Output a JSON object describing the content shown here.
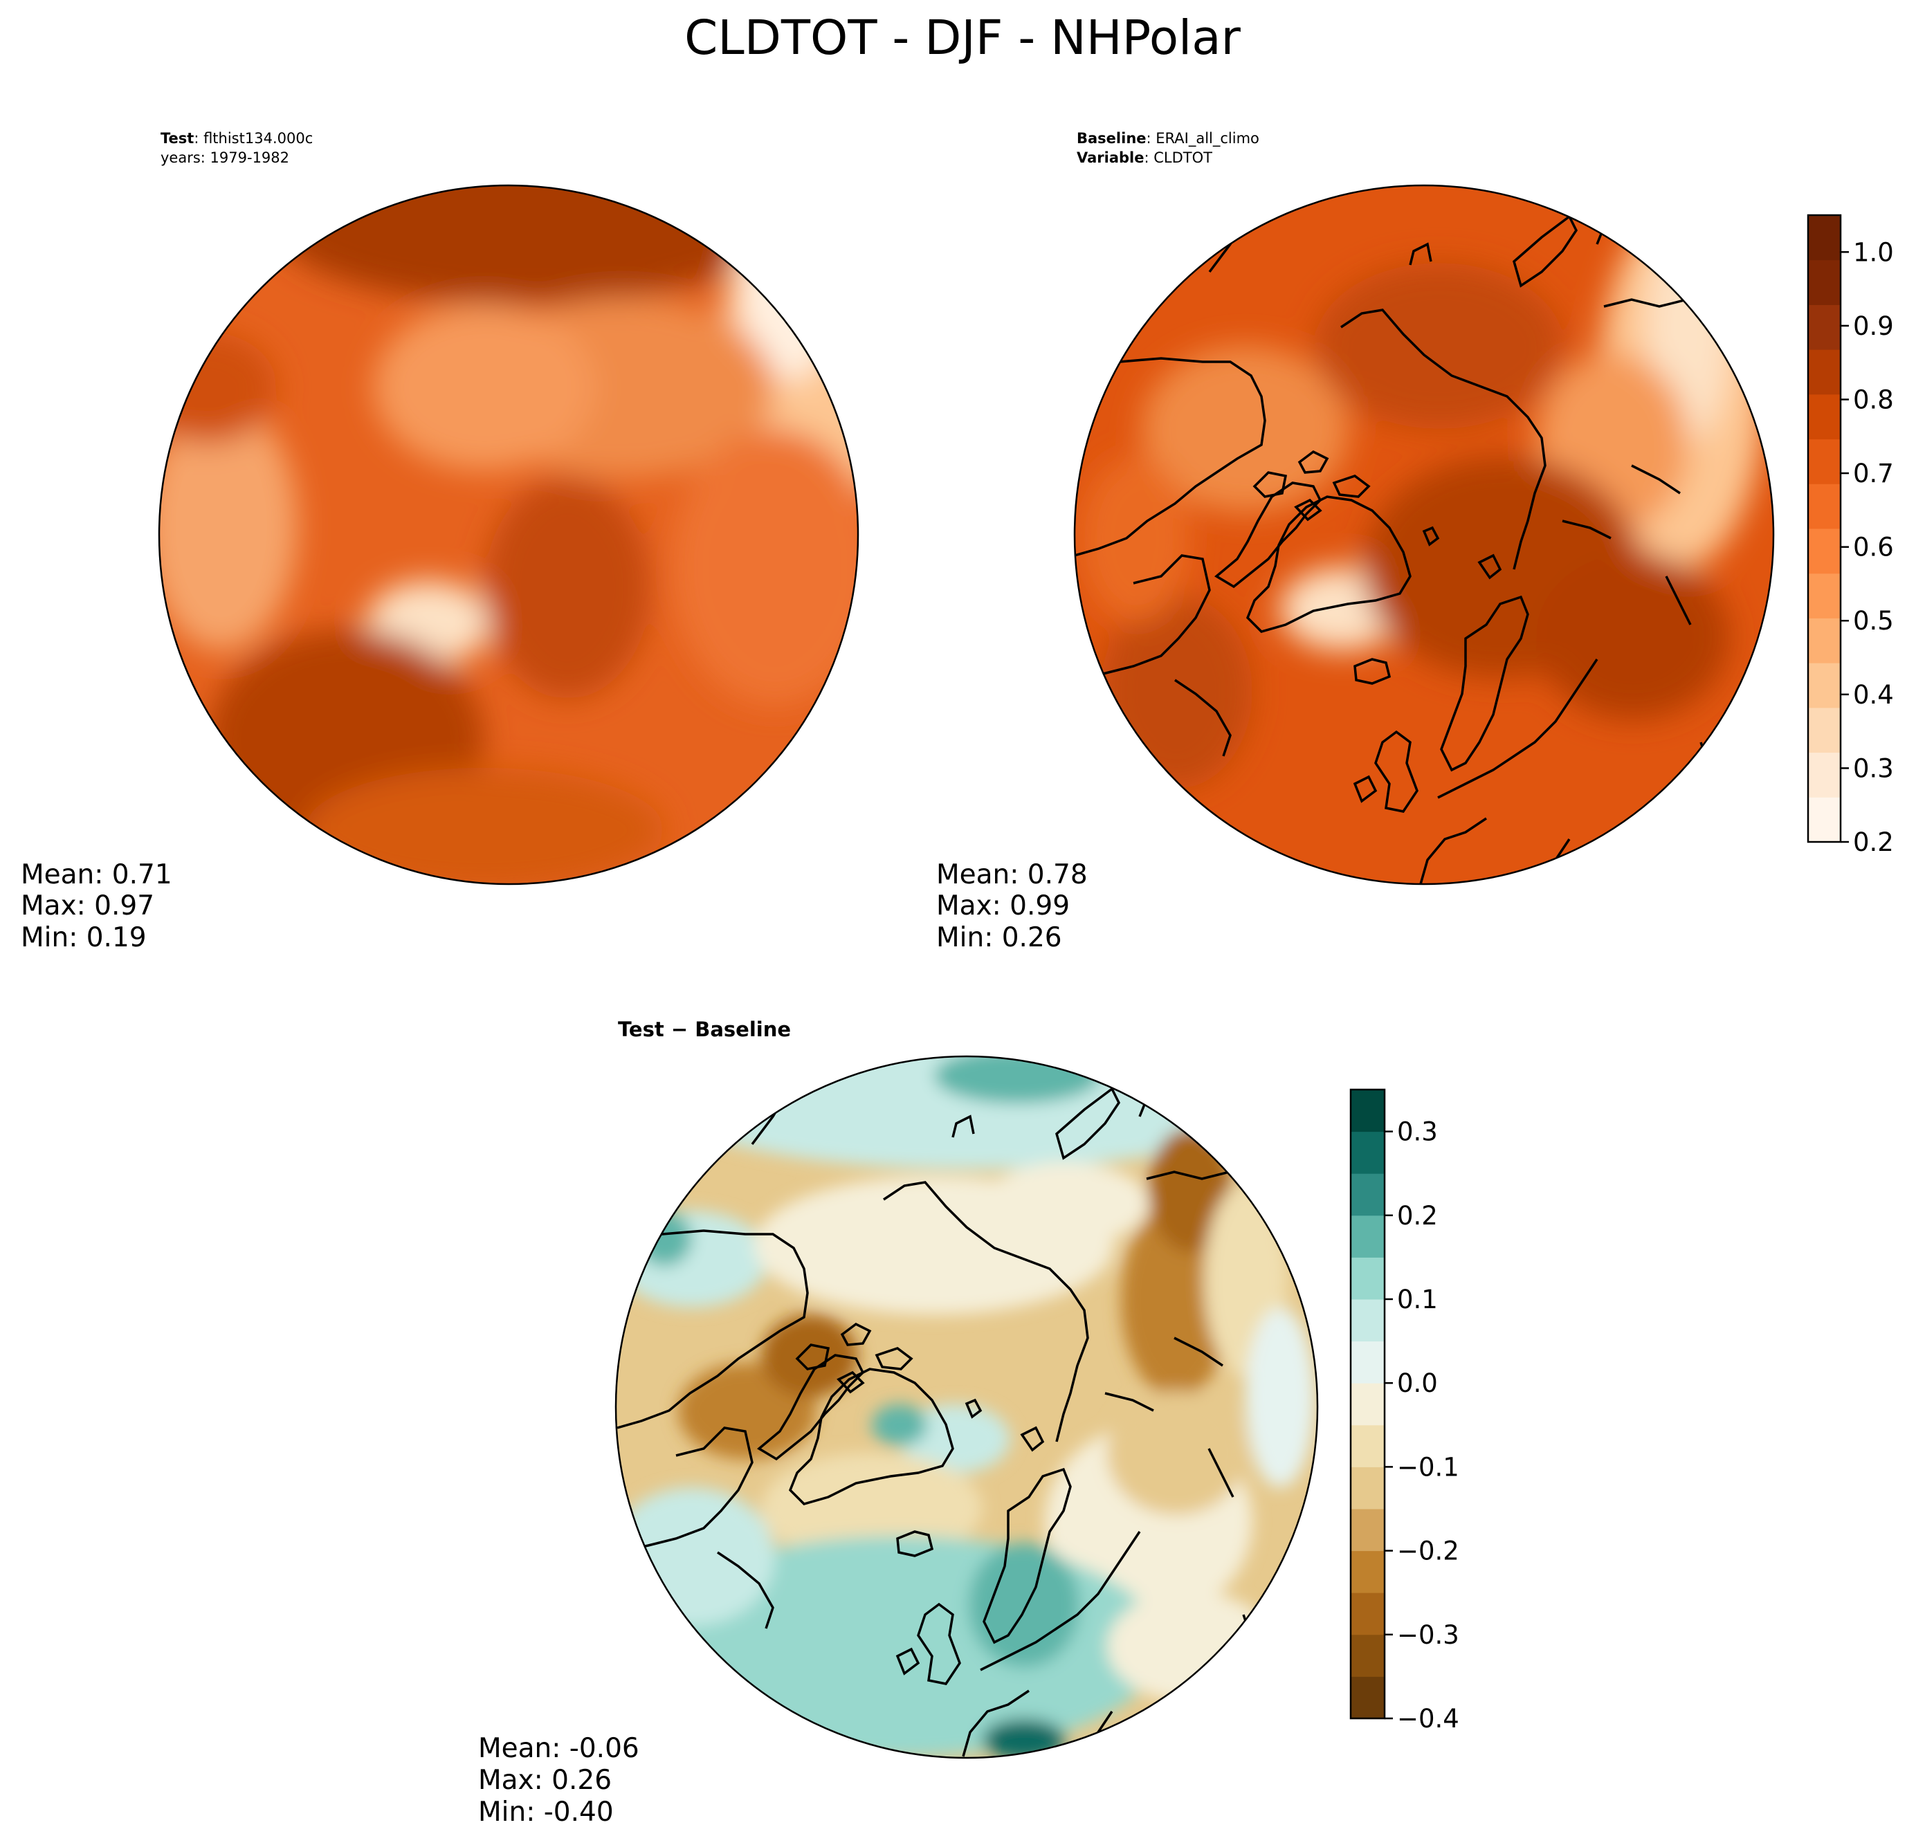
{
  "figure": {
    "title": "CLDTOT - DJF - NHPolar"
  },
  "test": {
    "label_bold": "Test",
    "label_value": ": flthist134.000c",
    "years_line": "years: 1979-1982",
    "stats": {
      "mean": "Mean:  0.71",
      "max": "Max:  0.97",
      "min": "Min:  0.19"
    }
  },
  "baseline": {
    "label_bold": "Baseline",
    "label_value": ": ERAI_all_climo",
    "variable_bold": "Variable",
    "variable_value": ": CLDTOT",
    "stats": {
      "mean": "Mean:  0.78",
      "max": "Max:  0.99",
      "min": "Min:  0.26"
    }
  },
  "difference": {
    "title": "Test − Baseline",
    "stats": {
      "mean": "Mean: -0.06",
      "max": "Max:  0.26",
      "min": "Min: -0.40"
    }
  },
  "colorbar_main": {
    "colormap": "Oranges",
    "range": [
      0.2,
      1.05
    ],
    "ticks": [
      "0.2",
      "0.3",
      "0.4",
      "0.5",
      "0.6",
      "0.7",
      "0.8",
      "0.9",
      "1.0"
    ],
    "colors": [
      "#fff5eb",
      "#fee9d4",
      "#fdd9b4",
      "#fdc692",
      "#fdb072",
      "#fd9a55",
      "#fa833b",
      "#f26d24",
      "#e45a12",
      "#d14a05",
      "#b53d03",
      "#98330a",
      "#7f2704",
      "#6f2203"
    ]
  },
  "colorbar_diff": {
    "colormap": "BrBG",
    "range": [
      -0.4,
      0.35
    ],
    "ticks": [
      "−0.4",
      "−0.3",
      "−0.2",
      "−0.1",
      "0.0",
      "0.1",
      "0.2",
      "0.3"
    ],
    "colors": [
      "#6b3d0a",
      "#8a510e",
      "#a86518",
      "#bf812d",
      "#d4a55e",
      "#e6c98d",
      "#f0dfb1",
      "#f5efd9",
      "#e6f3f0",
      "#c7eae5",
      "#98d8cd",
      "#5fb5a9",
      "#2e8b83",
      "#0f6b62",
      "#01493f"
    ]
  },
  "map_colors": {
    "coast": "#000000",
    "test_base": "#e6621e",
    "baseline_base": "#e0550f",
    "diff_base": "#e6c98d"
  }
}
